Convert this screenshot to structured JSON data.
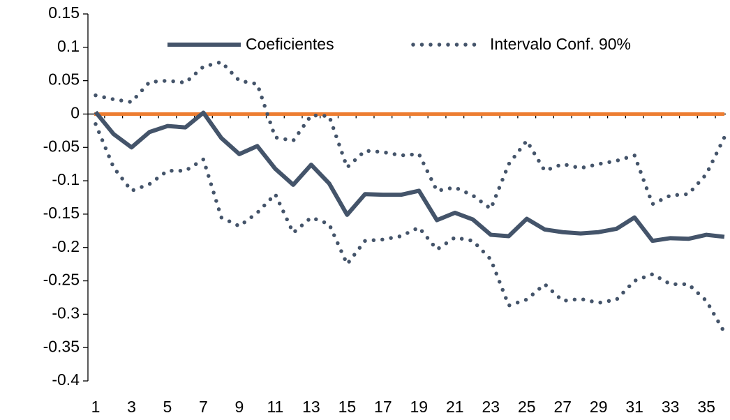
{
  "chart_data": {
    "type": "line",
    "categories": [
      1,
      null,
      3,
      null,
      5,
      null,
      7,
      null,
      9,
      null,
      11,
      null,
      13,
      null,
      15,
      null,
      17,
      null,
      19,
      null,
      21,
      null,
      23,
      null,
      25,
      null,
      27,
      null,
      29,
      null,
      31,
      null,
      33,
      null,
      35,
      null
    ],
    "series": [
      {
        "name": "Coeficientes",
        "color": "#44546a",
        "style": "solid",
        "values": [
          0.003,
          -0.03,
          -0.05,
          -0.027,
          -0.018,
          -0.02,
          0.002,
          -0.036,
          -0.06,
          -0.048,
          -0.082,
          -0.106,
          -0.076,
          -0.104,
          -0.151,
          -0.12,
          -0.121,
          -0.121,
          -0.115,
          -0.159,
          -0.148,
          -0.158,
          -0.181,
          -0.183,
          -0.157,
          -0.173,
          -0.177,
          -0.179,
          -0.177,
          -0.172,
          -0.155,
          -0.19,
          -0.186,
          -0.187,
          -0.181,
          -0.184
        ]
      },
      {
        "name": "Intervalo Conf. 90%",
        "color": "#44546a",
        "style": "dotted",
        "values": [
          0.028,
          0.022,
          0.018,
          0.048,
          0.05,
          0.047,
          0.071,
          0.078,
          0.05,
          0.045,
          -0.035,
          -0.04,
          -0.002,
          -0.003,
          -0.08,
          -0.055,
          -0.057,
          -0.062,
          -0.06,
          -0.115,
          -0.11,
          -0.122,
          -0.142,
          -0.075,
          -0.04,
          -0.085,
          -0.075,
          -0.081,
          -0.075,
          -0.07,
          -0.062,
          -0.135,
          -0.122,
          -0.12,
          -0.09,
          -0.035
        ]
      },
      {
        "color": "#44546a",
        "style": "dotted",
        "values": [
          -0.015,
          -0.08,
          -0.115,
          -0.105,
          -0.085,
          -0.085,
          -0.068,
          -0.155,
          -0.168,
          -0.148,
          -0.12,
          -0.178,
          -0.155,
          -0.165,
          -0.225,
          -0.19,
          -0.188,
          -0.183,
          -0.17,
          -0.203,
          -0.185,
          -0.19,
          -0.218,
          -0.287,
          -0.278,
          -0.255,
          -0.28,
          -0.277,
          -0.283,
          -0.278,
          -0.25,
          -0.24,
          -0.255,
          -0.255,
          -0.28,
          -0.327
        ]
      }
    ],
    "hline": 0,
    "hline_color": "#ed7d31",
    "ylim": [
      -0.4,
      0.15
    ],
    "yticks": [
      0.15,
      0.1,
      0.05,
      0,
      -0.05,
      -0.1,
      -0.15,
      -0.2,
      -0.25,
      -0.3,
      -0.35,
      -0.4
    ],
    "legend": "top"
  }
}
